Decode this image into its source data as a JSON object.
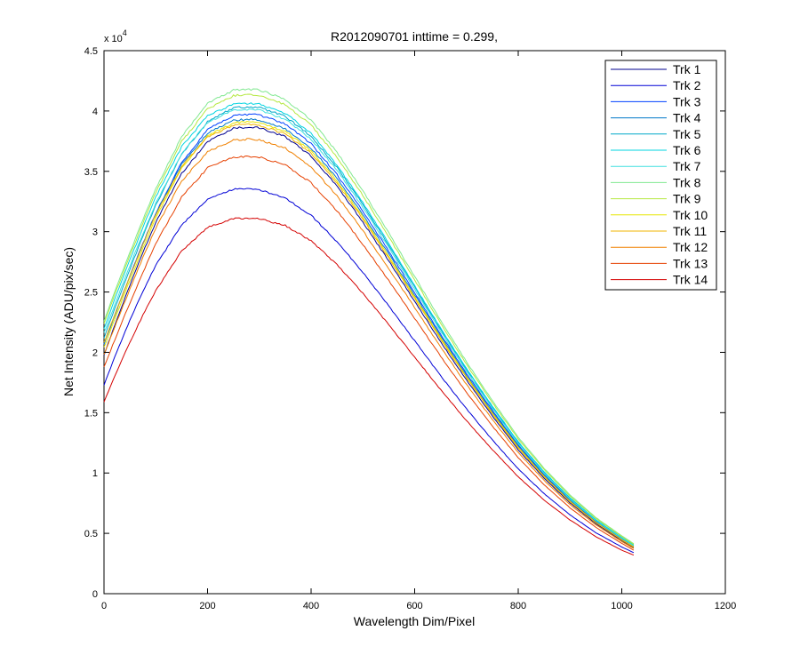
{
  "chart_data": {
    "type": "line",
    "title": "R2012090701 inttime = 0.299,",
    "xlabel": "Wavelength Dim/Pixel",
    "ylabel": "Net Intensity (ADU/pix/sec)",
    "xlim": [
      0,
      1200
    ],
    "ylim": [
      0,
      45000
    ],
    "x_ticks": [
      0,
      200,
      400,
      600,
      800,
      1000,
      1200
    ],
    "y_ticks": [
      0,
      5000,
      10000,
      15000,
      20000,
      25000,
      30000,
      35000,
      40000,
      45000
    ],
    "x_tick_labels": [
      "0",
      "200",
      "400",
      "600",
      "800",
      "1000",
      "1200"
    ],
    "y_tick_labels": [
      "0",
      "0.5",
      "1",
      "1.5",
      "2",
      "2.5",
      "3",
      "3.5",
      "4",
      "4.5"
    ],
    "y_multiplier_base": "x 10",
    "y_multiplier_exp": "4",
    "grid": false,
    "legend_position": "top-right",
    "x": [
      0,
      25,
      50,
      75,
      100,
      150,
      200,
      250,
      280,
      300,
      350,
      400,
      450,
      500,
      550,
      600,
      650,
      700,
      750,
      800,
      850,
      900,
      950,
      1000,
      1023
    ],
    "series": [
      {
        "name": "Trk 1",
        "color": "#00008f",
        "values": [
          19800,
          22750,
          25550,
          28240,
          30780,
          34820,
          37450,
          38580,
          38660,
          38600,
          37880,
          36270,
          33760,
          30800,
          27560,
          24220,
          20880,
          17710,
          14740,
          11930,
          9560,
          7520,
          5800,
          4400,
          3800
        ]
      },
      {
        "name": "Trk 2",
        "color": "#0000d6",
        "values": [
          17300,
          20090,
          22640,
          25040,
          27210,
          30560,
          32680,
          33510,
          33560,
          33480,
          32790,
          31360,
          29160,
          26620,
          23840,
          20960,
          18060,
          15320,
          12740,
          10340,
          8290,
          6530,
          5050,
          3870,
          3400
        ]
      },
      {
        "name": "Trk 3",
        "color": "#0040ff",
        "values": [
          20700,
          23560,
          26330,
          29000,
          31550,
          35730,
          38460,
          39640,
          39720,
          39660,
          38930,
          37290,
          34730,
          31700,
          28380,
          24950,
          21510,
          18250,
          15190,
          12310,
          9860,
          7760,
          5990,
          4550,
          3950
        ]
      },
      {
        "name": "Trk 4",
        "color": "#0078c8",
        "values": [
          20700,
          23540,
          26300,
          28950,
          31470,
          35570,
          38180,
          39230,
          39310,
          39260,
          38540,
          36930,
          34420,
          31420,
          28140,
          24760,
          21350,
          18110,
          15080,
          12220,
          9790,
          7700,
          5940,
          4500,
          3900
        ]
      },
      {
        "name": "Trk 5",
        "color": "#00a8c8",
        "values": [
          21200,
          24100,
          26900,
          29610,
          32200,
          36420,
          39130,
          40260,
          40350,
          40290,
          39560,
          37910,
          35330,
          32250,
          28890,
          25410,
          21910,
          18590,
          15480,
          12540,
          10050,
          7910,
          6110,
          4640,
          4020
        ]
      },
      {
        "name": "Trk 6",
        "color": "#00d4e0",
        "values": [
          22000,
          24880,
          27650,
          30330,
          32890,
          37030,
          39590,
          40570,
          40640,
          40580,
          39820,
          38130,
          35510,
          32400,
          29010,
          25520,
          22000,
          18660,
          15540,
          12590,
          10090,
          7940,
          6130,
          4650,
          4030
        ]
      },
      {
        "name": "Trk 7",
        "color": "#40e0e0",
        "values": [
          21600,
          24440,
          27180,
          29820,
          32350,
          36460,
          39050,
          40060,
          40130,
          40070,
          39320,
          37660,
          35080,
          32010,
          28670,
          25220,
          21740,
          18440,
          15350,
          12440,
          9970,
          7840,
          6050,
          4590,
          3980
        ]
      },
      {
        "name": "Trk 8",
        "color": "#80e890",
        "values": [
          22600,
          25490,
          28270,
          30980,
          33570,
          37860,
          40620,
          41720,
          41800,
          41740,
          40970,
          39260,
          36570,
          33360,
          29880,
          26280,
          22660,
          19220,
          16000,
          12970,
          10390,
          8180,
          6310,
          4790,
          4150
        ]
      },
      {
        "name": "Trk 9",
        "color": "#b4e840",
        "values": [
          22400,
          25260,
          28010,
          30690,
          33240,
          37470,
          40180,
          41270,
          41350,
          41290,
          40530,
          38830,
          36170,
          33000,
          29560,
          26000,
          22420,
          19010,
          15830,
          12830,
          10280,
          8090,
          6240,
          4740,
          4100
        ]
      },
      {
        "name": "Trk 10",
        "color": "#e6e600",
        "values": [
          20400,
          23220,
          25970,
          28620,
          31140,
          35270,
          37920,
          39010,
          39090,
          39030,
          38320,
          36710,
          34210,
          31220,
          27960,
          24600,
          21210,
          17990,
          14980,
          12140,
          9730,
          7660,
          5910,
          4480,
          3880
        ]
      },
      {
        "name": "Trk 11",
        "color": "#f0b400",
        "values": [
          20800,
          23610,
          26320,
          28940,
          31430,
          35400,
          37850,
          38800,
          38870,
          38810,
          38100,
          36500,
          34020,
          31050,
          27810,
          24470,
          21100,
          17900,
          14900,
          12080,
          9680,
          7620,
          5880,
          4460,
          3860
        ]
      },
      {
        "name": "Trk 12",
        "color": "#f08000",
        "values": [
          19800,
          22560,
          25240,
          27830,
          30290,
          34180,
          36640,
          37590,
          37660,
          37600,
          36920,
          35370,
          32960,
          30080,
          26940,
          23700,
          20440,
          17340,
          14430,
          11700,
          9380,
          7380,
          5700,
          4320,
          3750
        ]
      },
      {
        "name": "Trk 13",
        "color": "#e64000",
        "values": [
          18800,
          21480,
          24090,
          26610,
          29010,
          32870,
          35280,
          36180,
          36240,
          36180,
          35530,
          34050,
          31730,
          28960,
          25940,
          22820,
          19680,
          16690,
          13900,
          11270,
          9030,
          7110,
          5490,
          4170,
          3600
        ]
      },
      {
        "name": "Trk 14",
        "color": "#d40000",
        "values": [
          15900,
          18450,
          20830,
          23070,
          25130,
          28400,
          30360,
          31080,
          31120,
          31070,
          30510,
          29250,
          27260,
          24890,
          22290,
          19610,
          16910,
          14340,
          11940,
          9680,
          7760,
          6110,
          4720,
          3600,
          3200
        ]
      }
    ]
  }
}
